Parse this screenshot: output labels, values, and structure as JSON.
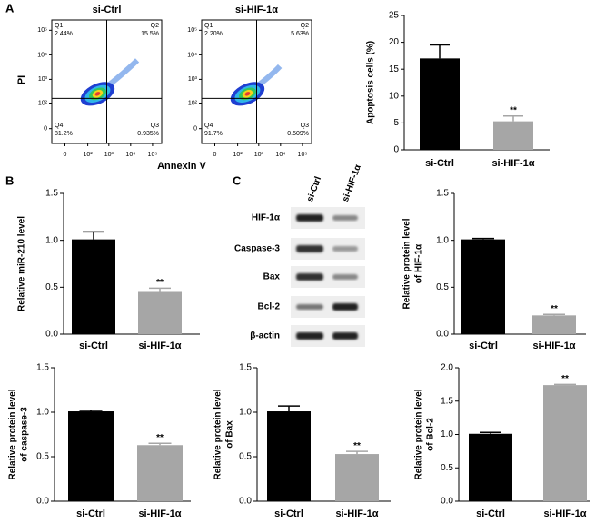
{
  "panels": [
    "A",
    "B",
    "C"
  ],
  "chart_data": [
    {
      "type": "quadrant",
      "title": "si-Ctrl",
      "ylabel": "PI",
      "xlabel": "Annexin V",
      "scale": "biexponential",
      "categories": [
        "Q1",
        "Q2",
        "Q3",
        "Q4"
      ],
      "values": [
        2.44,
        15.5,
        0.935,
        81.2
      ],
      "value_labels": [
        "2.44%",
        "15.5%",
        "0.935%",
        "81.2%"
      ],
      "xlim": [
        -30,
        262144
      ],
      "ylim": [
        -30,
        262144
      ],
      "xticks": [
        0,
        {
          "value": 100,
          "label": "10²"
        },
        {
          "value": 1000,
          "label": "10³"
        },
        {
          "value": 10000,
          "label": "10⁴"
        },
        {
          "value": 100000,
          "label": "10⁵"
        }
      ],
      "yticks": [
        0,
        {
          "value": 100,
          "label": "10²"
        },
        {
          "value": 1000,
          "label": "10³"
        },
        {
          "value": 10000,
          "label": "10⁴"
        },
        {
          "value": 100000,
          "label": "10⁵"
        }
      ],
      "gate": {
        "x": 800,
        "y": 160
      }
    },
    {
      "type": "quadrant",
      "title": "si-HIF-1α",
      "scale": "biexponential",
      "categories": [
        "Q1",
        "Q2",
        "Q3",
        "Q4"
      ],
      "values": [
        2.2,
        5.63,
        0.509,
        91.7
      ],
      "value_labels": [
        "2.20%",
        "5.63%",
        "0.509%",
        "91.7%"
      ],
      "xlim": [
        -30,
        262144
      ],
      "ylim": [
        -30,
        262144
      ],
      "xticks": [
        0,
        {
          "value": 100,
          "label": "10²"
        },
        {
          "value": 1000,
          "label": "10³"
        },
        {
          "value": 10000,
          "label": "10⁴"
        },
        {
          "value": 100000,
          "label": "10⁵"
        }
      ],
      "yticks": [
        0,
        {
          "value": 100,
          "label": "10²"
        },
        {
          "value": 1000,
          "label": "10³"
        },
        {
          "value": 10000,
          "label": "10⁴"
        },
        {
          "value": 100000,
          "label": "10⁵"
        }
      ],
      "gate": {
        "x": 800,
        "y": 160
      }
    },
    {
      "type": "bar",
      "ylabel": "Apoptosis cells (%)",
      "categories": [
        "si-Ctrl",
        "si-HIF-1α"
      ],
      "values": [
        17.0,
        5.3
      ],
      "errors": [
        2.5,
        1.0
      ],
      "colors": [
        "#000000",
        "#a6a6a6"
      ],
      "ylim": [
        0,
        25
      ],
      "yticks": [
        0,
        5,
        10,
        15,
        20,
        25
      ],
      "significance": {
        "index": 1,
        "label": "**"
      }
    },
    {
      "type": "bar",
      "ylabel": "Relative miR-210 level",
      "categories": [
        "si-Ctrl",
        "si-HIF-1α"
      ],
      "values": [
        1.01,
        0.45
      ],
      "errors": [
        0.08,
        0.04
      ],
      "colors": [
        "#000000",
        "#a6a6a6"
      ],
      "ylim": [
        0,
        1.5
      ],
      "yticks": [
        {
          "value": 0,
          "label": "0.0"
        },
        0.5,
        {
          "value": 1,
          "label": "1.0"
        },
        1.5
      ],
      "significance": {
        "index": 1,
        "label": "**"
      }
    },
    {
      "type": "bar",
      "ylabel": [
        "Relative protein level",
        "of HIF-1α"
      ],
      "categories": [
        "si-Ctrl",
        "si-HIF-1α"
      ],
      "values": [
        1.01,
        0.2
      ],
      "errors": [
        0.01,
        0.01
      ],
      "colors": [
        "#000000",
        "#a6a6a6"
      ],
      "ylim": [
        0,
        1.5
      ],
      "yticks": [
        {
          "value": 0,
          "label": "0.0"
        },
        0.5,
        {
          "value": 1,
          "label": "1.0"
        },
        1.5
      ],
      "significance": {
        "index": 1,
        "label": "**"
      }
    },
    {
      "type": "bar",
      "ylabel": [
        "Relative protein level",
        "of caspase-3"
      ],
      "categories": [
        "si-Ctrl",
        "si-HIF-1α"
      ],
      "values": [
        1.01,
        0.63
      ],
      "errors": [
        0.01,
        0.02
      ],
      "colors": [
        "#000000",
        "#a6a6a6"
      ],
      "ylim": [
        0,
        1.5
      ],
      "yticks": [
        {
          "value": 0,
          "label": "0.0"
        },
        0.5,
        {
          "value": 1,
          "label": "1.0"
        },
        1.5
      ],
      "significance": {
        "index": 1,
        "label": "**"
      }
    },
    {
      "type": "bar",
      "ylabel": [
        "Relative protein level",
        "of Bax"
      ],
      "categories": [
        "si-Ctrl",
        "si-HIF-1α"
      ],
      "values": [
        1.01,
        0.53
      ],
      "errors": [
        0.06,
        0.03
      ],
      "colors": [
        "#000000",
        "#a6a6a6"
      ],
      "ylim": [
        0,
        1.5
      ],
      "yticks": [
        {
          "value": 0,
          "label": "0.0"
        },
        0.5,
        {
          "value": 1,
          "label": "1.0"
        },
        1.5
      ],
      "significance": {
        "index": 1,
        "label": "**"
      }
    },
    {
      "type": "bar",
      "ylabel": [
        "Relative protein level",
        "of Bcl-2"
      ],
      "categories": [
        "si-Ctrl",
        "si-HIF-1α"
      ],
      "values": [
        1.01,
        1.74
      ],
      "errors": [
        0.02,
        0.01
      ],
      "colors": [
        "#000000",
        "#a6a6a6"
      ],
      "ylim": [
        0,
        2
      ],
      "yticks": [
        {
          "value": 0,
          "label": "0.0"
        },
        0.5,
        {
          "value": 1,
          "label": "1.0"
        },
        1.5,
        {
          "value": 2,
          "label": "2.0"
        }
      ],
      "significance": {
        "index": 1,
        "label": "**"
      }
    }
  ],
  "blot": {
    "lanes": [
      "si-Ctrl",
      "si-HIF-1α"
    ],
    "proteins": [
      "HIF-1α",
      "Caspase-3",
      "Bax",
      "Bcl-2",
      "β-actin"
    ]
  }
}
